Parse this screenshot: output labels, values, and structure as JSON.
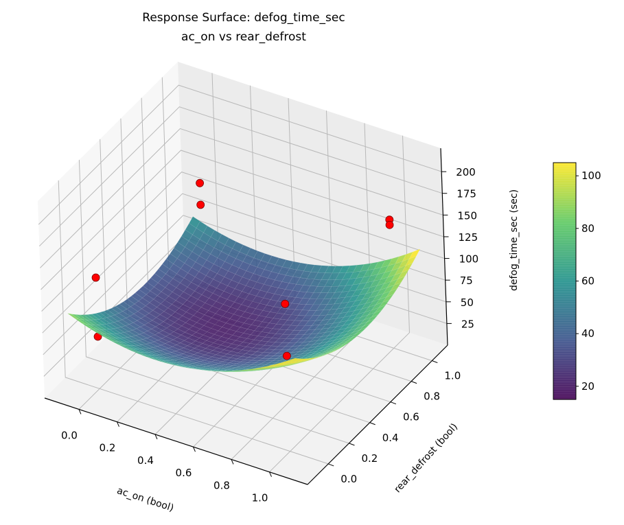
{
  "chart_data": {
    "type": "surface3d",
    "title": "Response Surface: defog_time_sec",
    "subtitle": "ac_on vs rear_defrost",
    "xlabel": "ac_on (bool)",
    "ylabel": "rear_defrost (bool)",
    "zlabel": "defog_time_sec (sec)",
    "xlim": [
      -0.18,
      1.2
    ],
    "ylim": [
      -0.2,
      1.15
    ],
    "zlim": [
      0,
      227
    ],
    "xticks": [
      "0.0",
      "0.2",
      "0.4",
      "0.6",
      "0.8",
      "1.0"
    ],
    "yticks": [
      "0.0",
      "0.2",
      "0.4",
      "0.6",
      "0.8",
      "1.0"
    ],
    "zticks": [
      "25",
      "50",
      "75",
      "100",
      "125",
      "150",
      "175",
      "200"
    ],
    "surface_model": {
      "terms": "z = a + b*x + c*y + d*x^2 + e*y^2 + f*x*y",
      "a": 70,
      "b": -70,
      "c": -125,
      "d": 100,
      "e": 100,
      "f": 10,
      "x_range": [
        -0.1,
        1.1
      ],
      "y_range": [
        -0.1,
        1.1
      ]
    },
    "points": [
      {
        "x": 0,
        "y": 0,
        "z": 128
      },
      {
        "x": 0,
        "y": 0,
        "z": 60
      },
      {
        "x": 0,
        "y": 1,
        "z": 118
      },
      {
        "x": 0,
        "y": 1,
        "z": 93
      },
      {
        "x": 1,
        "y": 0,
        "z": 170
      },
      {
        "x": 1,
        "y": 0,
        "z": 110
      },
      {
        "x": 1,
        "y": 1,
        "z": 148
      },
      {
        "x": 1,
        "y": 1,
        "z": 142
      }
    ],
    "point_color": "#ff0000",
    "colormap": "viridis",
    "colorbar": {
      "range": [
        15,
        105
      ],
      "ticks": [
        "20",
        "40",
        "60",
        "80",
        "100"
      ]
    },
    "grid": true
  }
}
